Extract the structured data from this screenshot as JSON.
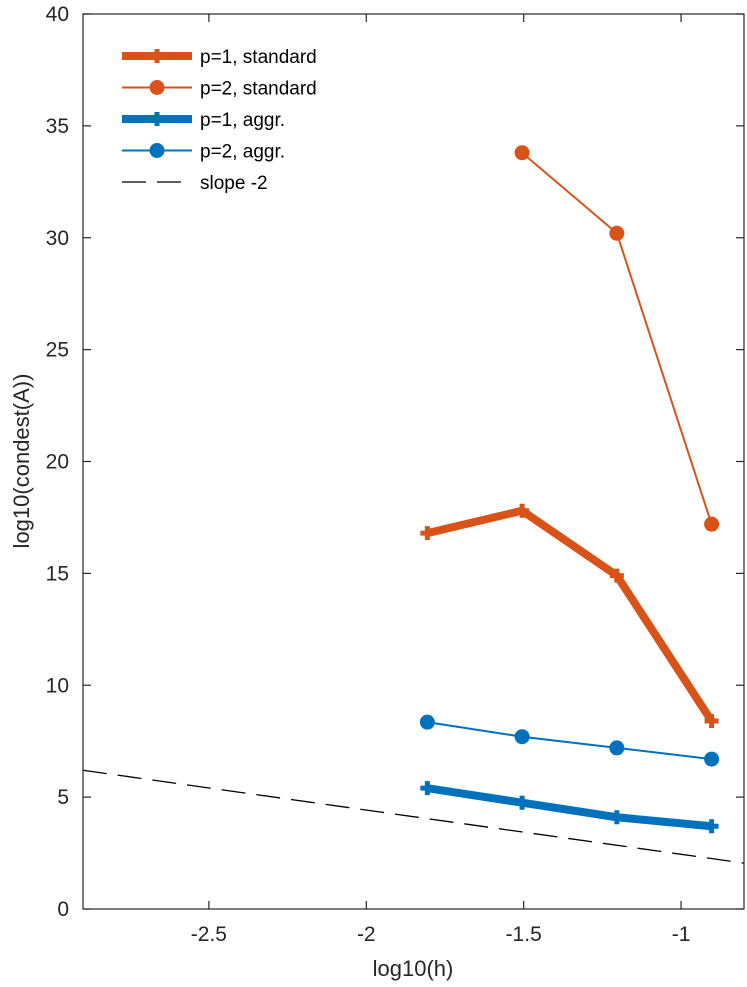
{
  "chart_data": {
    "type": "line",
    "title": "",
    "xlabel": "log10(h)",
    "ylabel": "log10(condest(A))",
    "xlim": [
      -2.9,
      -0.8
    ],
    "ylim": [
      0,
      40
    ],
    "xticks": [
      -2.5,
      -2,
      -1.5,
      -1
    ],
    "xtick_labels": [
      "-2.5",
      "-2",
      "-1.5",
      "-1"
    ],
    "yticks": [
      0,
      5,
      10,
      15,
      20,
      25,
      30,
      35,
      40
    ],
    "ytick_labels": [
      "0",
      "5",
      "10",
      "15",
      "20",
      "25",
      "30",
      "35",
      "40"
    ],
    "grid": false,
    "legend_position": "top-left",
    "series": [
      {
        "name": "p=1, standard",
        "color": "#d95319",
        "marker": "plus",
        "line_style": "solid",
        "weight": "thick",
        "x": [
          -1.806,
          -1.505,
          -1.204,
          -0.903
        ],
        "y": [
          16.8,
          17.8,
          14.9,
          8.4
        ]
      },
      {
        "name": "p=2, standard",
        "color": "#d95319",
        "marker": "circle",
        "line_style": "solid",
        "weight": "thin",
        "x": [
          -1.505,
          -1.204,
          -0.903
        ],
        "y": [
          33.8,
          30.2,
          17.2
        ]
      },
      {
        "name": "p=1, aggr.",
        "color": "#0072bd",
        "marker": "plus",
        "line_style": "solid",
        "weight": "thick",
        "x": [
          -1.806,
          -1.505,
          -1.204,
          -0.903
        ],
        "y": [
          5.4,
          4.75,
          4.1,
          3.7
        ]
      },
      {
        "name": "p=2, aggr.",
        "color": "#0072bd",
        "marker": "circle",
        "line_style": "solid",
        "weight": "thin",
        "x": [
          -1.806,
          -1.505,
          -1.204,
          -0.903
        ],
        "y": [
          8.35,
          7.7,
          7.2,
          6.7
        ]
      },
      {
        "name": "slope -2",
        "color": "#000000",
        "marker": "none",
        "line_style": "dashed",
        "weight": "thin",
        "x": [
          -2.9,
          -0.8
        ],
        "y": [
          6.2,
          2.05
        ]
      }
    ]
  }
}
